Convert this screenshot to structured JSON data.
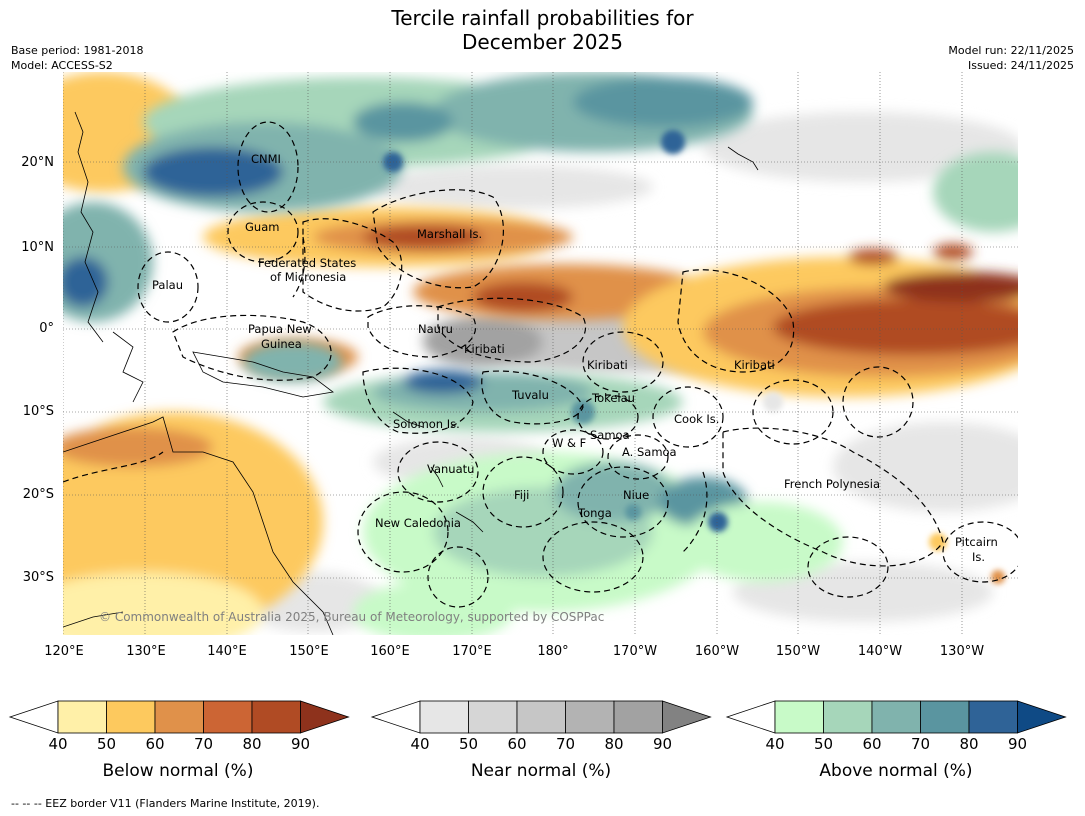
{
  "title_line1": "Tercile rainfall probabilities for",
  "title_line2": "December 2025",
  "meta": {
    "base_period": "Base period: 1981-2018",
    "model": "Model: ACCESS-S2",
    "model_run": "Model run: 22/11/2025",
    "issued": "Issued: 24/11/2025"
  },
  "map": {
    "lon_ticks": [
      "120°E",
      "130°E",
      "140°E",
      "150°E",
      "160°E",
      "170°E",
      "180°",
      "170°W",
      "160°W",
      "150°W",
      "140°W",
      "130°W"
    ],
    "lat_ticks": [
      "20°N",
      "10°N",
      "0°",
      "10°S",
      "20°S",
      "30°S"
    ],
    "regions": [
      "CNMI",
      "Guam",
      "Marshall Is.",
      "Federated States",
      "of Micronesia",
      "Palau",
      "Papua New",
      "Guinea",
      "Nauru",
      "Kiribati",
      "Kiribati",
      "Kiribati",
      "Tuvalu",
      "Tokelau",
      "Solomon Is.",
      "Cook Is.",
      "Samoa",
      "W & F",
      "A. Samoa",
      "Vanuatu",
      "Fiji",
      "Niue",
      "Tonga",
      "French Polynesia",
      "New Caledonia",
      "Pitcairn",
      "Is."
    ],
    "copyright": "© Commonwealth of Australia 2025, Bureau of Meteorology, supported by COSPPac"
  },
  "colorbars": [
    {
      "title": "Below normal (%)",
      "ticks": [
        "40",
        "50",
        "60",
        "70",
        "80",
        "90"
      ],
      "colors": [
        "#fff0a8",
        "#fdc95e",
        "#e0914a",
        "#cc6534",
        "#b04b24",
        "#8e321c"
      ]
    },
    {
      "title": "Near normal (%)",
      "ticks": [
        "40",
        "50",
        "60",
        "70",
        "80",
        "90"
      ],
      "colors": [
        "#e6e6e6",
        "#d6d6d6",
        "#c6c6c6",
        "#b3b3b3",
        "#a2a2a2",
        "#828282"
      ]
    },
    {
      "title": "Above normal (%)",
      "ticks": [
        "40",
        "50",
        "60",
        "70",
        "80",
        "90"
      ],
      "colors": [
        "#c8fac8",
        "#a6d6ba",
        "#80b3ad",
        "#5a95a0",
        "#2f6397",
        "#0f4a85"
      ]
    }
  ],
  "footnote": "--  --  -- EEZ border V11 (Flanders Marine Institute, 2019)."
}
